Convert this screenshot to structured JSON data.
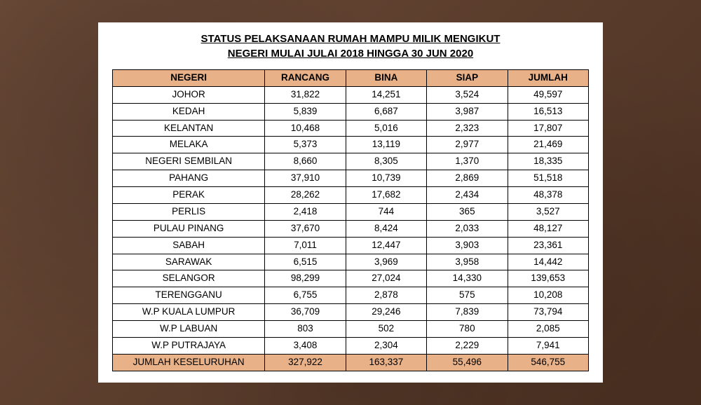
{
  "title_line1": "STATUS PELAKSANAAN RUMAH MAMPU MILIK MENGIKUT",
  "title_line2": "NEGERI MULAI JULAI 2018 HINGGA 30 JUN 2020",
  "header_bg": "#e8b188",
  "total_bg": "#e8b188",
  "columns": [
    "NEGERI",
    "RANCANG",
    "BINA",
    "SIAP",
    "JUMLAH"
  ],
  "rows": [
    {
      "negeri": "JOHOR",
      "rancang": "31,822",
      "bina": "14,251",
      "siap": "3,524",
      "jumlah": "49,597"
    },
    {
      "negeri": "KEDAH",
      "rancang": "5,839",
      "bina": "6,687",
      "siap": "3,987",
      "jumlah": "16,513"
    },
    {
      "negeri": "KELANTAN",
      "rancang": "10,468",
      "bina": "5,016",
      "siap": "2,323",
      "jumlah": "17,807"
    },
    {
      "negeri": "MELAKA",
      "rancang": "5,373",
      "bina": "13,119",
      "siap": "2,977",
      "jumlah": "21,469"
    },
    {
      "negeri": "NEGERI SEMBILAN",
      "rancang": "8,660",
      "bina": "8,305",
      "siap": "1,370",
      "jumlah": "18,335"
    },
    {
      "negeri": "PAHANG",
      "rancang": "37,910",
      "bina": "10,739",
      "siap": "2,869",
      "jumlah": "51,518"
    },
    {
      "negeri": "PERAK",
      "rancang": "28,262",
      "bina": "17,682",
      "siap": "2,434",
      "jumlah": "48,378"
    },
    {
      "negeri": "PERLIS",
      "rancang": "2,418",
      "bina": "744",
      "siap": "365",
      "jumlah": "3,527"
    },
    {
      "negeri": "PULAU PINANG",
      "rancang": "37,670",
      "bina": "8,424",
      "siap": "2,033",
      "jumlah": "48,127"
    },
    {
      "negeri": "SABAH",
      "rancang": "7,011",
      "bina": "12,447",
      "siap": "3,903",
      "jumlah": "23,361"
    },
    {
      "negeri": "SARAWAK",
      "rancang": "6,515",
      "bina": "3,969",
      "siap": "3,958",
      "jumlah": "14,442"
    },
    {
      "negeri": "SELANGOR",
      "rancang": "98,299",
      "bina": "27,024",
      "siap": "14,330",
      "jumlah": "139,653"
    },
    {
      "negeri": "TERENGGANU",
      "rancang": "6,755",
      "bina": "2,878",
      "siap": "575",
      "jumlah": "10,208"
    },
    {
      "negeri": "W.P  KUALA LUMPUR",
      "rancang": "36,709",
      "bina": "29,246",
      "siap": "7,839",
      "jumlah": "73,794",
      "wrap": true
    },
    {
      "negeri": "W.P LABUAN",
      "rancang": "803",
      "bina": "502",
      "siap": "780",
      "jumlah": "2,085"
    },
    {
      "negeri": "W.P PUTRAJAYA",
      "rancang": "3,408",
      "bina": "2,304",
      "siap": "2,229",
      "jumlah": "7,941"
    }
  ],
  "total": {
    "negeri": "JUMLAH KESELURUHAN",
    "rancang": "327,922",
    "bina": "163,337",
    "siap": "55,496",
    "jumlah": "546,755"
  }
}
